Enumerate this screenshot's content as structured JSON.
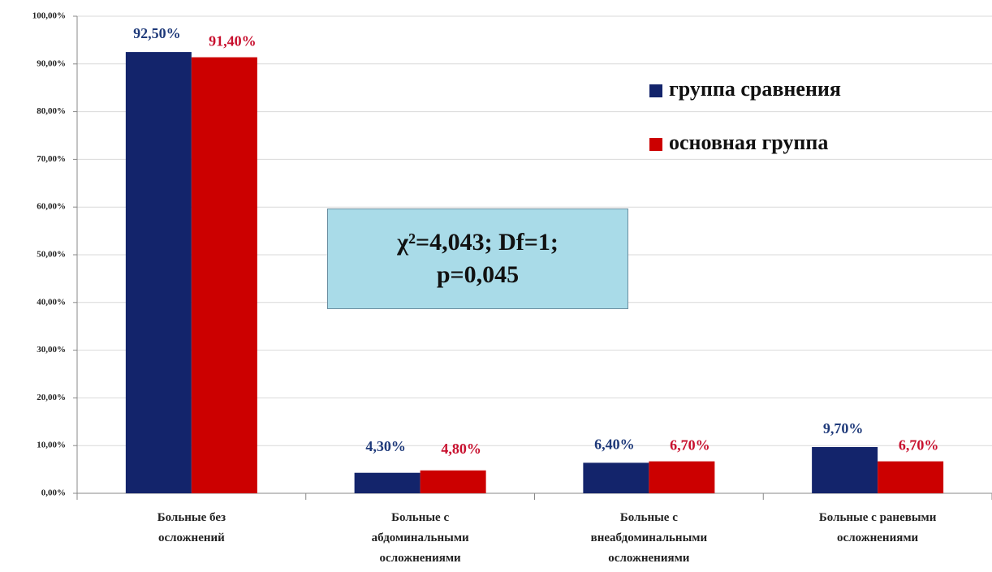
{
  "chart_data": {
    "type": "bar",
    "categories": [
      "Больные без\nосложнений",
      "Больные с\nабдоминальными\nосложнениями",
      "Больные с\nвнеабдоминальными\nосложнениями",
      "Больные с раневыми\nосложнениями"
    ],
    "series": [
      {
        "name": "группа сравнения",
        "color": "#13246b",
        "label_color": "#1f3a7a",
        "values": [
          92.5,
          4.3,
          6.4,
          9.7
        ],
        "value_labels": [
          "92,50%",
          "4,30%",
          "6,40%",
          "9,70%"
        ]
      },
      {
        "name": "основная группа",
        "color": "#cc0000",
        "label_color": "#c8102e",
        "values": [
          91.4,
          4.8,
          6.7,
          6.7
        ],
        "value_labels": [
          "91,40%",
          "4,80%",
          "6,70%",
          "6,70%"
        ]
      }
    ],
    "annotation": "χ²=4,043; Df=1;\np=0,045",
    "ylim": [
      0,
      100
    ],
    "yticks": [
      {
        "value": 0,
        "label": "0,00%"
      },
      {
        "value": 10,
        "label": "10,00%"
      },
      {
        "value": 20,
        "label": "20,00%"
      },
      {
        "value": 30,
        "label": "30,00%"
      },
      {
        "value": 40,
        "label": "40,00%"
      },
      {
        "value": 50,
        "label": "50,00%"
      },
      {
        "value": 60,
        "label": "60,00%"
      },
      {
        "value": 70,
        "label": "70,00%"
      },
      {
        "value": 80,
        "label": "80,00%"
      },
      {
        "value": 90,
        "label": "90,00%"
      },
      {
        "value": 100,
        "label": "100,00%"
      }
    ],
    "grid": true,
    "legend": "upper right"
  }
}
